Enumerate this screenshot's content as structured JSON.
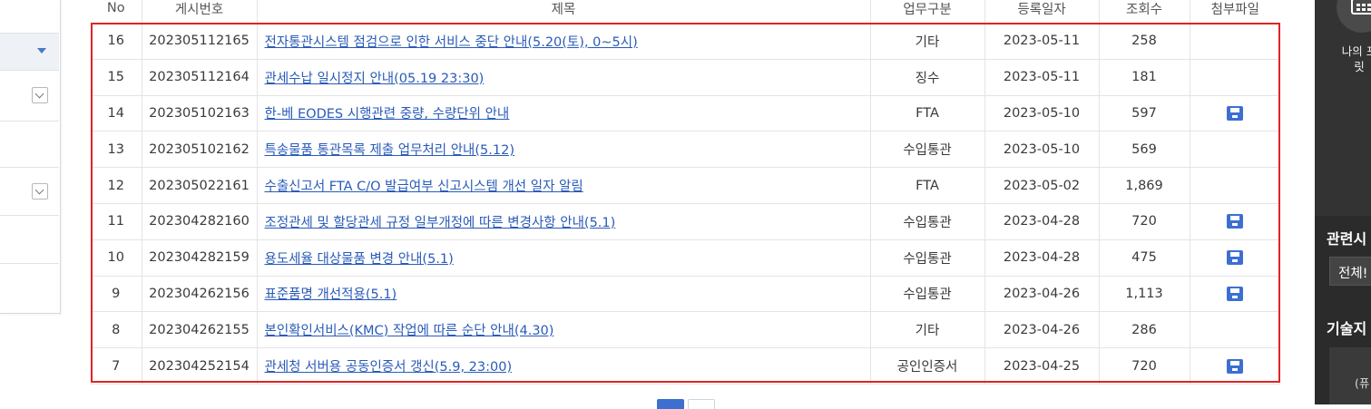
{
  "table": {
    "headers": [
      "No",
      "게시번호",
      "제목",
      "업무구분",
      "등록일자",
      "조회수",
      "첨부파일"
    ],
    "rows": [
      {
        "no": "16",
        "post_id": "202305112165",
        "title": "전자통관시스템 점검으로 인한 서비스 중단 안내(5.20(토), 0~5시)",
        "category": "기타",
        "date": "2023-05-11",
        "views": "258",
        "attachment": false
      },
      {
        "no": "15",
        "post_id": "202305112164",
        "title": "관세수납 일시정지 안내(05.19 23:30)",
        "category": "징수",
        "date": "2023-05-11",
        "views": "181",
        "attachment": false
      },
      {
        "no": "14",
        "post_id": "202305102163",
        "title": "한-베 EODES 시행관련 중량, 수량단위 안내",
        "category": "FTA",
        "date": "2023-05-10",
        "views": "597",
        "attachment": true
      },
      {
        "no": "13",
        "post_id": "202305102162",
        "title": "특송물품 통관목록 제출 업무처리 안내(5.12)",
        "category": "수입통관",
        "date": "2023-05-10",
        "views": "569",
        "attachment": false
      },
      {
        "no": "12",
        "post_id": "202305022161",
        "title": "수출신고서 FTA C/O 발급여부 신고시스템 개선 일자 알림",
        "category": "FTA",
        "date": "2023-05-02",
        "views": "1,869",
        "attachment": false
      },
      {
        "no": "11",
        "post_id": "202304282160",
        "title": "조정관세 및 할당관세 규정 일부개정에 따른 변경사항 안내(5.1)",
        "category": "수입통관",
        "date": "2023-04-28",
        "views": "720",
        "attachment": true
      },
      {
        "no": "10",
        "post_id": "202304282159",
        "title": "용도세율 대상물품 변경 안내(5.1)",
        "category": "수입통관",
        "date": "2023-04-28",
        "views": "475",
        "attachment": true
      },
      {
        "no": "9",
        "post_id": "202304262156",
        "title": "표준품명 개선적용(5.1)",
        "category": "수입통관",
        "date": "2023-04-26",
        "views": "1,113",
        "attachment": true
      },
      {
        "no": "8",
        "post_id": "202304262155",
        "title": "본인확인서비스(KMC) 작업에 따른 순단 안내(4.30)",
        "category": "기타",
        "date": "2023-04-26",
        "views": "286",
        "attachment": false
      },
      {
        "no": "7",
        "post_id": "202304252154",
        "title": "관세청 서버용 공동인증서 갱신(5.9, 23:00)",
        "category": "공인인증서",
        "date": "2023-04-25",
        "views": "720",
        "attachment": true
      }
    ]
  },
  "attachment_icon": "save-disk-icon",
  "right_panel": {
    "shortcut_label_line1": "나의 포",
    "shortcut_label_line2": "릿",
    "related_title": "관련시",
    "related_select": "전체!",
    "tech_title": "기술지",
    "box_text": "(퓨"
  },
  "colors": {
    "link": "#2a5bb8",
    "highlight_border": "#e02424",
    "accent": "#3d6fd1",
    "right_panel_bg": "#2b2b2b"
  }
}
